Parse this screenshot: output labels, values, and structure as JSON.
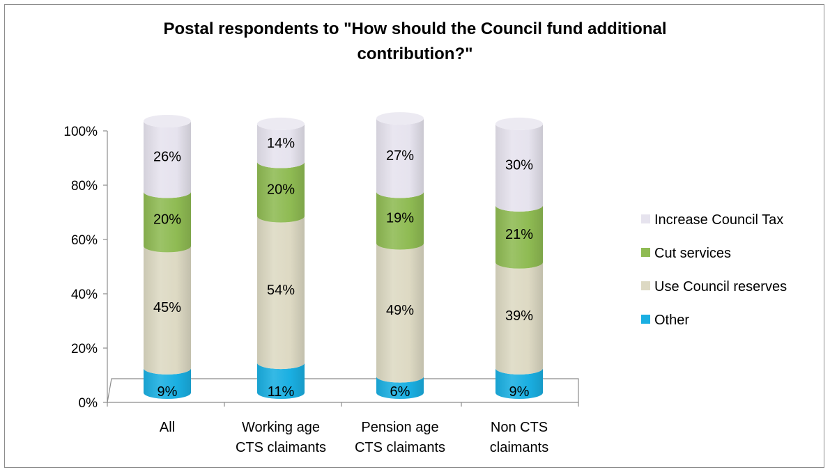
{
  "chart_data": {
    "type": "bar",
    "stacked": true,
    "style": "3d-cylinder",
    "title_lines": [
      "Postal respondents to \"How should the Council fund additional",
      "contribution?\""
    ],
    "categories": [
      [
        "All"
      ],
      [
        "Working age",
        "CTS claimants"
      ],
      [
        "Pension age",
        "CTS claimants"
      ],
      [
        "Non CTS",
        "claimants"
      ]
    ],
    "series": [
      {
        "name": "Other",
        "values": [
          9,
          11,
          6,
          9
        ],
        "color": "#1aafe2",
        "labels": [
          "9%",
          "11%",
          "6%",
          "9%"
        ]
      },
      {
        "name": "Use Council reserves",
        "values": [
          45,
          54,
          49,
          39
        ],
        "color": "#ddd9c3",
        "labels": [
          "45%",
          "54%",
          "49%",
          "39%"
        ]
      },
      {
        "name": "Cut services",
        "values": [
          20,
          20,
          19,
          21
        ],
        "color": "#8fbb53",
        "labels": [
          "20%",
          "20%",
          "19%",
          "21%"
        ]
      },
      {
        "name": "Increase Council Tax",
        "values": [
          26,
          14,
          27,
          30
        ],
        "color": "#e6e3ee",
        "labels": [
          "26%",
          "14%",
          "27%",
          "30%"
        ]
      }
    ],
    "yticks": [
      "0%",
      "20%",
      "40%",
      "60%",
      "80%",
      "100%"
    ],
    "ylim": [
      0,
      100
    ],
    "legend_position": "right",
    "legend_order": [
      "Increase Council Tax",
      "Cut services",
      "Use Council reserves",
      "Other"
    ]
  }
}
